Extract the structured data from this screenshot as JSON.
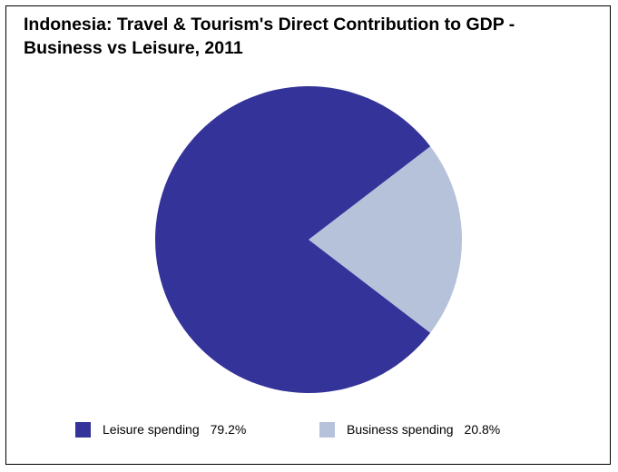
{
  "chart_data": {
    "type": "pie",
    "title": "Indonesia: Travel & Tourism's Direct Contribution to GDP - Business vs Leisure, 2011",
    "title_lines": [
      "Indonesia: Travel & Tourism's Direct Contribution to GDP -",
      "Business vs Leisure, 2011"
    ],
    "legend_position": "bottom",
    "slices": [
      {
        "label": "Leisure spending",
        "value": 79.2,
        "value_label": "79.2%",
        "color": "#333399"
      },
      {
        "label": "Business spending",
        "value": 20.8,
        "value_label": "20.8%",
        "color": "#b6c2da"
      }
    ]
  }
}
